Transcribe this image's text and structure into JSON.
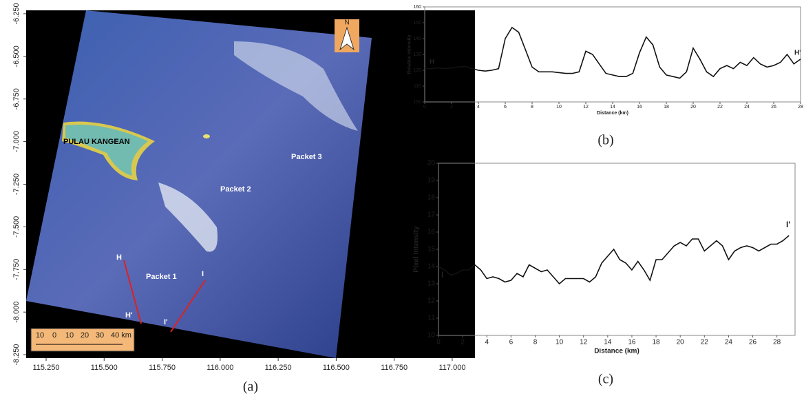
{
  "chart_data": [
    {
      "type": "image",
      "panel_label": "(a)",
      "xlim": [
        115.164,
        117.098
      ],
      "ylim": [
        -8.27,
        -6.23
      ],
      "xticks": [
        {
          "value": 115.25,
          "label": "115.250"
        },
        {
          "value": 115.5,
          "label": "115.500"
        },
        {
          "value": 115.75,
          "label": "115.750"
        },
        {
          "value": 116.0,
          "label": "116.000"
        },
        {
          "value": 116.25,
          "label": "116.250"
        },
        {
          "value": 116.5,
          "label": "116.500"
        },
        {
          "value": 116.75,
          "label": "116.750"
        },
        {
          "value": 117.0,
          "label": "117.000"
        }
      ],
      "yticks": [
        {
          "value": -6.25,
          "label": "-6.250"
        },
        {
          "value": -6.5,
          "label": "-6.500"
        },
        {
          "value": -6.75,
          "label": "-6.750"
        },
        {
          "value": -7.0,
          "label": "-7.000"
        },
        {
          "value": -7.25,
          "label": "-7.250"
        },
        {
          "value": -7.5,
          "label": "-7.500"
        },
        {
          "value": -7.75,
          "label": "-7.750"
        },
        {
          "value": -8.0,
          "label": "-8.000"
        },
        {
          "value": -8.25,
          "label": "-8.250"
        }
      ],
      "annotations": [
        "PULAU KANGEAN",
        "Packet 1",
        "Packet 2",
        "Packet 3",
        "H",
        "H'",
        "I",
        "I'",
        "N"
      ],
      "scale_labels": [
        "10",
        "0",
        "10",
        "20",
        "30",
        "40 km"
      ]
    },
    {
      "type": "line",
      "panel_label": "(b)",
      "xlabel": "Distance (km)",
      "ylabel": "Relative intensity",
      "annotations": [
        "H",
        "H'"
      ],
      "color": "#111111",
      "xlim": [
        0,
        28
      ],
      "ylim": [
        100,
        160
      ],
      "xticks": [
        0,
        2,
        4,
        6,
        8,
        10,
        12,
        14,
        16,
        18,
        20,
        22,
        24,
        26,
        28
      ],
      "yticks": [
        100,
        110,
        120,
        130,
        140,
        150,
        160
      ],
      "x": [
        0,
        0.5,
        1,
        1.5,
        2,
        2.5,
        3,
        3.5,
        4,
        4.5,
        5,
        5.5,
        6,
        6.5,
        7,
        7.5,
        8,
        8.5,
        9,
        9.5,
        10,
        10.5,
        11,
        11.5,
        12,
        12.5,
        13,
        13.5,
        14,
        14.5,
        15,
        15.5,
        16,
        16.5,
        17,
        17.5,
        18,
        18.5,
        19,
        19.5,
        20,
        20.5,
        21,
        21.5,
        22,
        22.5,
        23,
        23.5,
        24,
        24.5,
        25,
        25.5,
        26,
        26.5,
        27,
        27.5,
        28
      ],
      "values": [
        121,
        121,
        121.5,
        121,
        121.5,
        122,
        122.5,
        121,
        120,
        119.5,
        120,
        121,
        140,
        147,
        144,
        133,
        122,
        119,
        119,
        119,
        118.5,
        118,
        118,
        119,
        132,
        130,
        124,
        118,
        117,
        116,
        116,
        118,
        131,
        141,
        136,
        122,
        117,
        116,
        115,
        119,
        134,
        127,
        119,
        116,
        121,
        123,
        121,
        125,
        123,
        128,
        124,
        122,
        123,
        125,
        130,
        124,
        127
      ]
    },
    {
      "type": "line",
      "panel_label": "(c)",
      "xlabel": "Distance (km)",
      "ylabel": "Pixel Intensity",
      "annotations": [
        "I",
        "I'"
      ],
      "color": "#111111",
      "xlim": [
        0,
        29.5
      ],
      "ylim": [
        10,
        20
      ],
      "xticks": [
        0,
        2,
        4,
        6,
        8,
        10,
        12,
        14,
        16,
        18,
        20,
        22,
        24,
        26,
        28
      ],
      "yticks": [
        10,
        11,
        12,
        13,
        14,
        15,
        16,
        17,
        18,
        19,
        20
      ],
      "x": [
        0,
        0.5,
        1,
        1.5,
        2,
        2.5,
        3,
        3.5,
        4,
        4.5,
        5,
        5.5,
        6,
        6.5,
        7,
        7.5,
        8,
        8.5,
        9,
        9.5,
        10,
        10.5,
        11,
        11.5,
        12,
        12.5,
        13,
        13.5,
        14,
        14.5,
        15,
        15.5,
        16,
        16.5,
        17,
        17.5,
        18,
        18.5,
        19,
        19.5,
        20,
        20.5,
        21,
        21.5,
        22,
        22.5,
        23,
        23.5,
        24,
        24.5,
        25,
        25.5,
        26,
        26.5,
        27,
        27.5,
        28,
        28.5,
        29
      ],
      "values": [
        14,
        13.8,
        13.5,
        13.6,
        13.8,
        13.8,
        14.1,
        13.8,
        13.3,
        13.4,
        13.3,
        13.1,
        13.2,
        13.6,
        13.4,
        14.1,
        13.9,
        13.7,
        13.8,
        13.4,
        13.0,
        13.3,
        13.3,
        13.3,
        13.3,
        13.1,
        13.4,
        14.2,
        14.6,
        15.0,
        14.4,
        14.2,
        13.8,
        14.3,
        13.8,
        13.2,
        14.4,
        14.4,
        14.8,
        15.2,
        15.4,
        15.2,
        15.6,
        15.6,
        14.9,
        15.2,
        15.5,
        15.2,
        14.4,
        14.9,
        15.1,
        15.2,
        15.1,
        14.9,
        15.1,
        15.3,
        15.3,
        15.5,
        15.8
      ]
    }
  ]
}
